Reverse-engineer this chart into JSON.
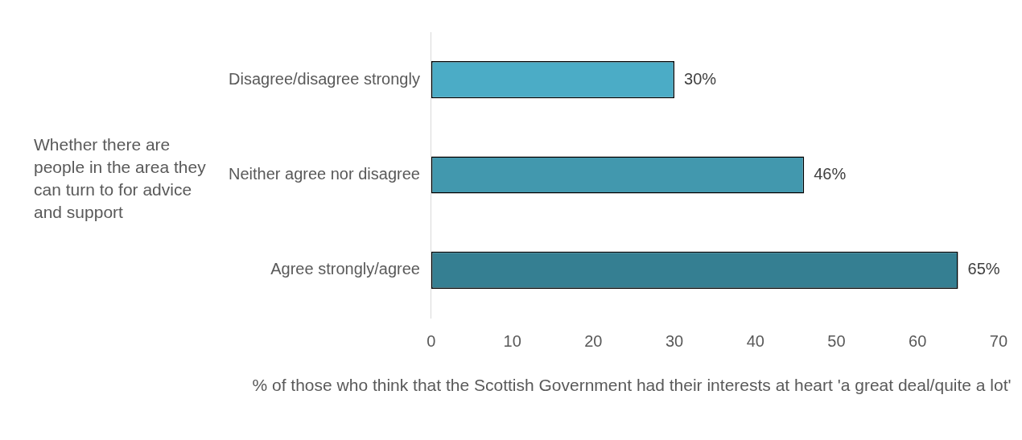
{
  "chart_data": {
    "type": "bar",
    "orientation": "horizontal",
    "ylabel": "Whether there are people in the area they can turn to for advice and support",
    "xlabel": "% of those who think that the Scottish Government had their interests at heart 'a great deal/quite a lot'",
    "categories": [
      "Disagree/disagree strongly",
      "Neither agree nor disagree",
      "Agree strongly/agree"
    ],
    "values": [
      30,
      46,
      65
    ],
    "colors": [
      "#4bacc6",
      "#4298ae",
      "#357f92"
    ],
    "value_labels": [
      "30%",
      "46%",
      "65%"
    ],
    "xlim": [
      0,
      70
    ],
    "xticks": [
      0,
      10,
      20,
      30,
      40,
      50,
      60,
      70
    ],
    "grid": false,
    "legend": false
  }
}
